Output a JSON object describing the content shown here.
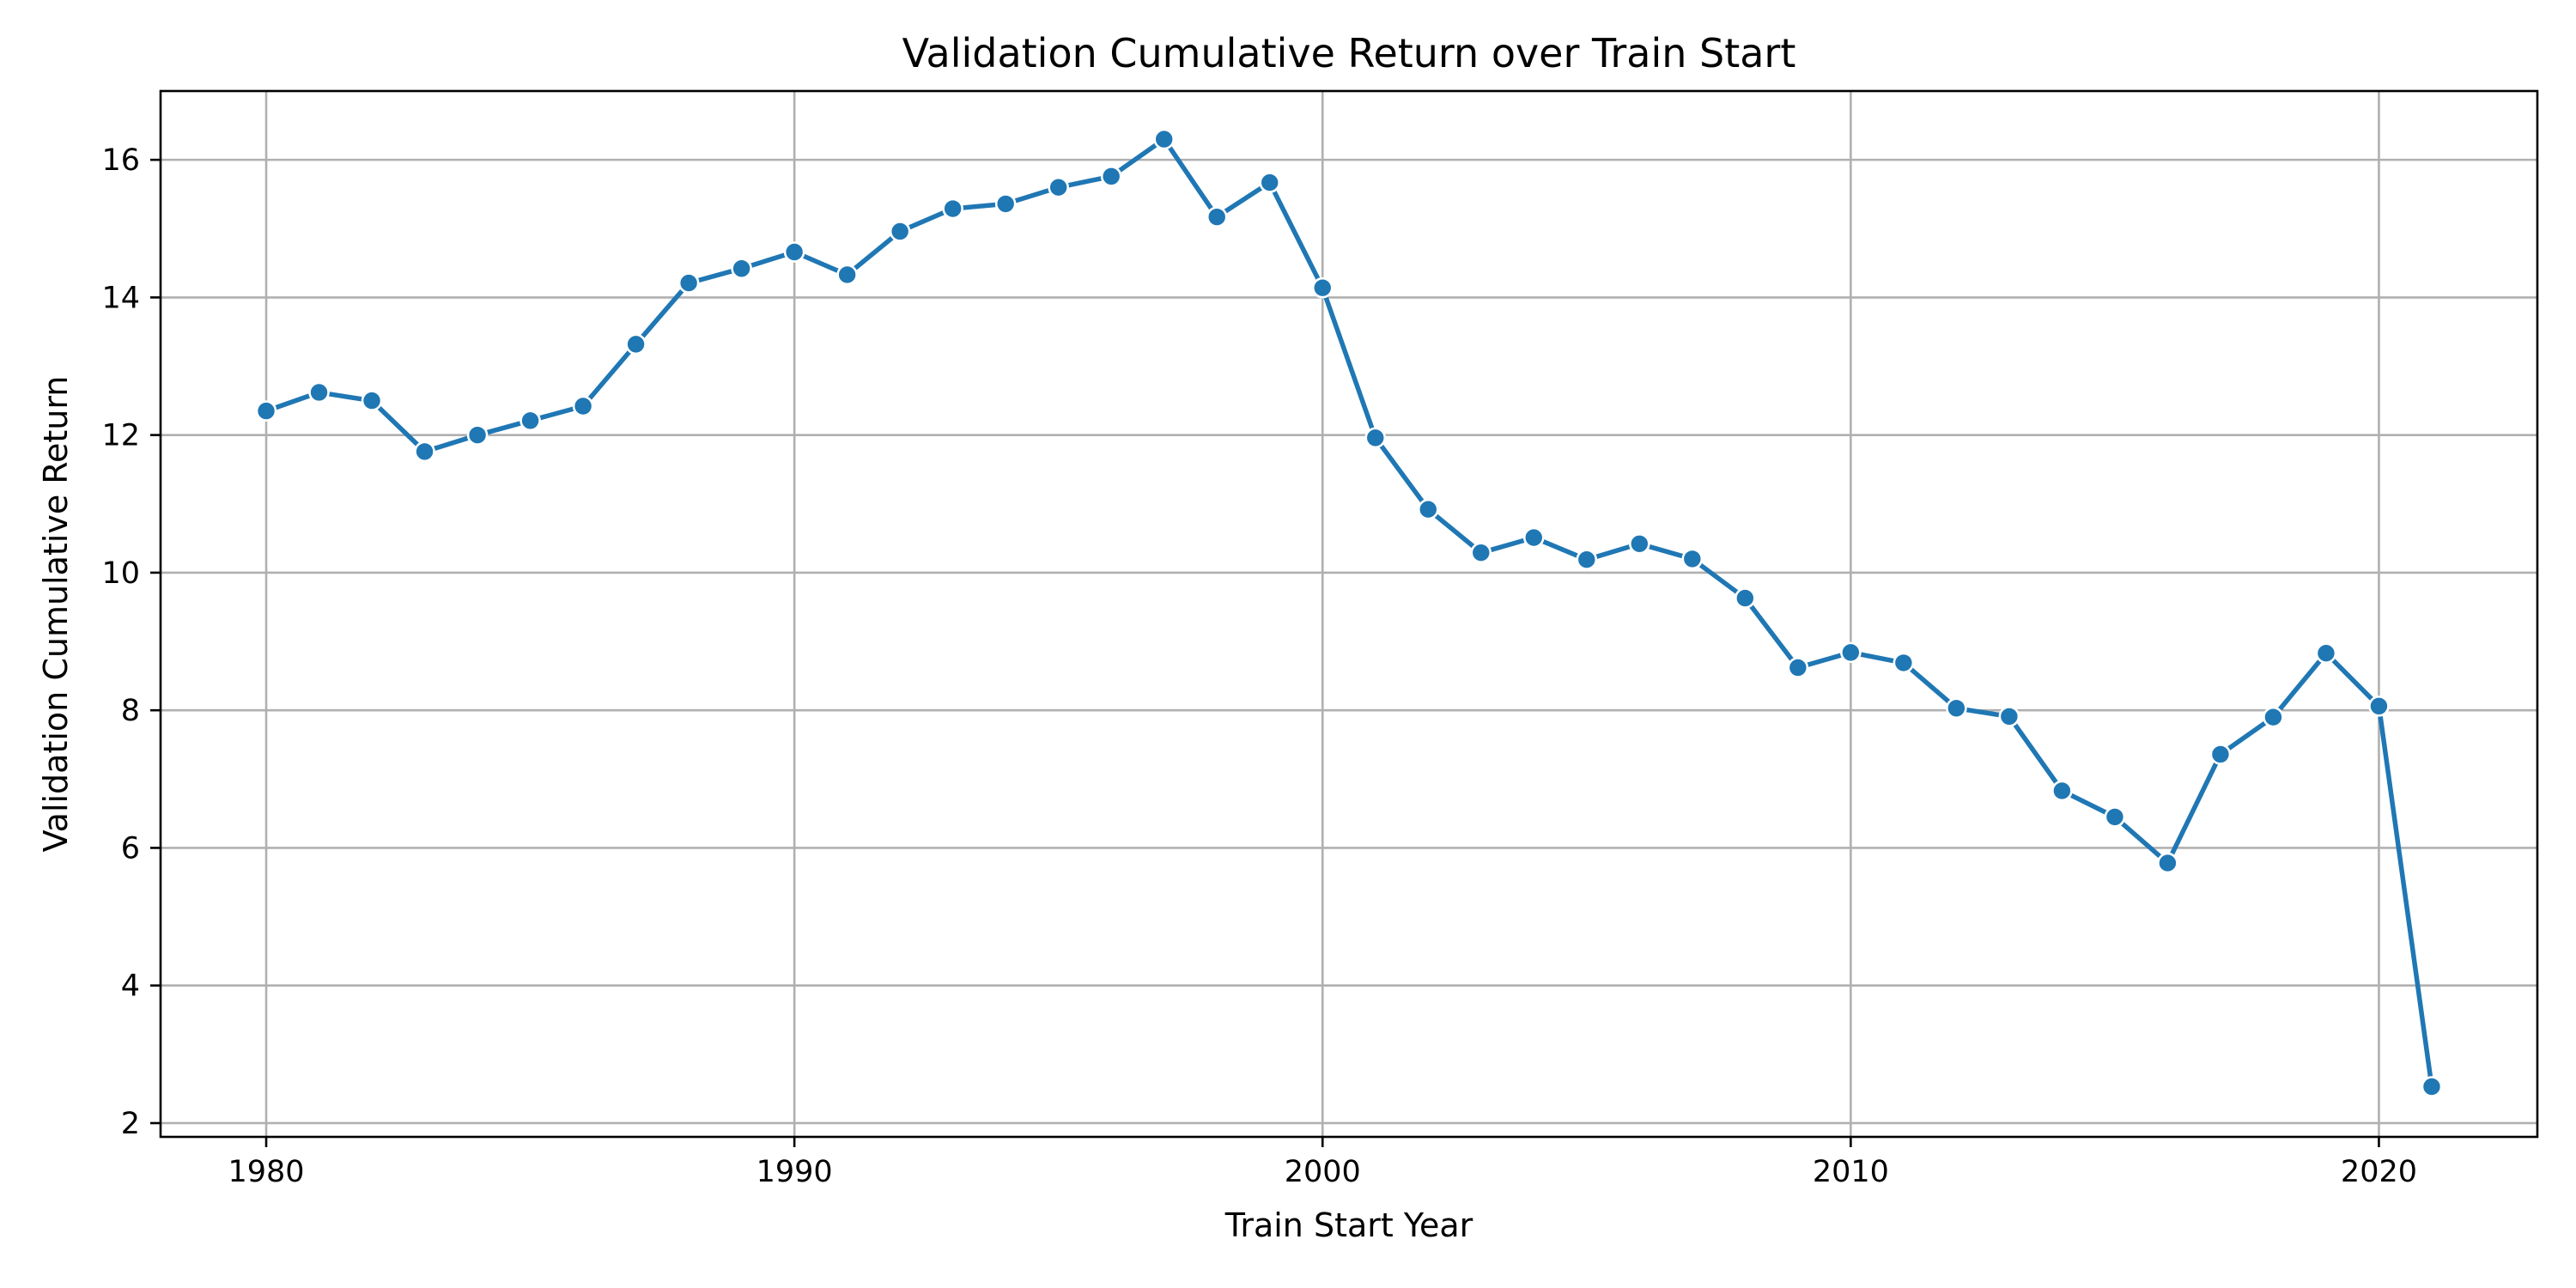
{
  "chart_data": {
    "type": "line",
    "title": "Validation Cumulative Return over Train Start",
    "xlabel": "Train Start Year",
    "ylabel": "Validation Cumulative Return",
    "xlim": [
      1978,
      2023
    ],
    "ylim": [
      1.8,
      17
    ],
    "x_ticks": [
      1980,
      1990,
      2000,
      2010,
      2020
    ],
    "y_ticks": [
      2,
      4,
      6,
      8,
      10,
      12,
      14,
      16
    ],
    "grid": true,
    "series": [
      {
        "color": "#1f77b4",
        "marker": "circle",
        "x": [
          1980,
          1981,
          1982,
          1983,
          1984,
          1985,
          1986,
          1987,
          1988,
          1989,
          1990,
          1991,
          1992,
          1993,
          1994,
          1995,
          1996,
          1997,
          1998,
          1999,
          2000,
          2001,
          2002,
          2003,
          2004,
          2005,
          2006,
          2007,
          2008,
          2009,
          2010,
          2011,
          2012,
          2013,
          2014,
          2015,
          2016,
          2017,
          2018,
          2019,
          2020,
          2021
        ],
        "y": [
          12.35,
          12.62,
          12.5,
          11.76,
          12.0,
          12.21,
          12.42,
          13.32,
          14.21,
          14.42,
          14.66,
          14.33,
          14.96,
          15.29,
          15.36,
          15.6,
          15.76,
          16.3,
          15.17,
          15.67,
          14.14,
          11.96,
          10.92,
          10.29,
          10.51,
          10.19,
          10.42,
          10.2,
          9.63,
          8.62,
          8.84,
          8.69,
          8.03,
          7.91,
          6.83,
          6.45,
          5.78,
          7.36,
          7.9,
          8.83,
          8.06,
          2.53
        ]
      }
    ]
  }
}
